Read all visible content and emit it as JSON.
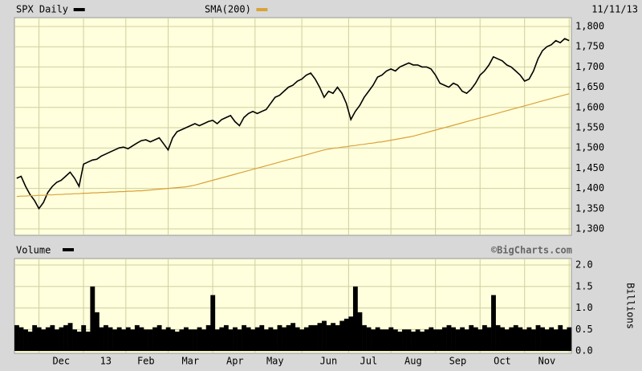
{
  "chart_data": [
    {
      "type": "line",
      "date": "11/11/13",
      "ylim": [
        1300,
        1800
      ],
      "yticks": [
        {
          "value": 1300,
          "label": "1,300"
        },
        {
          "value": 1350,
          "label": "1,350"
        },
        {
          "value": 1400,
          "label": "1,400"
        },
        {
          "value": 1450,
          "label": "1,450"
        },
        {
          "value": 1500,
          "label": "1,500"
        },
        {
          "value": 1550,
          "label": "1,550"
        },
        {
          "value": 1600,
          "label": "1,600"
        },
        {
          "value": 1650,
          "label": "1,650"
        },
        {
          "value": 1700,
          "label": "1,700"
        },
        {
          "value": 1750,
          "label": "1,750"
        },
        {
          "value": 1800,
          "label": "1,800"
        }
      ],
      "grid": true,
      "series": [
        {
          "name": "SPX Daily",
          "color": "#000000",
          "values": [
            1425,
            1430,
            1405,
            1385,
            1370,
            1350,
            1365,
            1390,
            1405,
            1415,
            1420,
            1430,
            1440,
            1425,
            1405,
            1460,
            1465,
            1470,
            1472,
            1480,
            1485,
            1490,
            1495,
            1500,
            1502,
            1498,
            1505,
            1512,
            1518,
            1520,
            1515,
            1520,
            1525,
            1510,
            1495,
            1525,
            1540,
            1545,
            1550,
            1555,
            1560,
            1555,
            1560,
            1565,
            1568,
            1560,
            1570,
            1575,
            1580,
            1565,
            1555,
            1575,
            1585,
            1590,
            1585,
            1590,
            1595,
            1610,
            1625,
            1630,
            1640,
            1650,
            1655,
            1665,
            1670,
            1680,
            1685,
            1670,
            1650,
            1625,
            1640,
            1635,
            1650,
            1635,
            1610,
            1570,
            1590,
            1605,
            1625,
            1640,
            1655,
            1675,
            1680,
            1690,
            1695,
            1690,
            1700,
            1705,
            1710,
            1705,
            1705,
            1700,
            1700,
            1695,
            1680,
            1660,
            1655,
            1650,
            1660,
            1655,
            1640,
            1635,
            1645,
            1660,
            1680,
            1690,
            1705,
            1725,
            1720,
            1715,
            1705,
            1700,
            1690,
            1680,
            1665,
            1670,
            1690,
            1720,
            1740,
            1750,
            1755,
            1765,
            1760,
            1770,
            1765
          ]
        },
        {
          "name": "SMA(200)",
          "color": "#d9a23a",
          "values": [
            1380,
            1381,
            1381,
            1382,
            1382,
            1383,
            1383,
            1384,
            1384,
            1385,
            1385,
            1386,
            1386,
            1387,
            1387,
            1388,
            1388,
            1389,
            1389,
            1390,
            1390,
            1391,
            1391,
            1392,
            1392,
            1393,
            1393,
            1394,
            1394,
            1395,
            1396,
            1397,
            1398,
            1399,
            1400,
            1401,
            1402,
            1403,
            1404,
            1406,
            1408,
            1411,
            1414,
            1417,
            1420,
            1423,
            1426,
            1429,
            1432,
            1435,
            1438,
            1441,
            1444,
            1447,
            1450,
            1453,
            1456,
            1459,
            1462,
            1465,
            1468,
            1471,
            1474,
            1477,
            1480,
            1483,
            1486,
            1489,
            1492,
            1495,
            1497,
            1499,
            1500,
            1502,
            1503,
            1505,
            1506,
            1508,
            1509,
            1511,
            1512,
            1514,
            1515,
            1517,
            1519,
            1521,
            1523,
            1525,
            1527,
            1529,
            1532,
            1535,
            1538,
            1541,
            1544,
            1547,
            1550,
            1553,
            1556,
            1559,
            1562,
            1565,
            1568,
            1571,
            1574,
            1577,
            1580,
            1583,
            1586,
            1589,
            1592,
            1595,
            1598,
            1601,
            1604,
            1607,
            1610,
            1613,
            1616,
            1619,
            1622,
            1625,
            1628,
            1631,
            1634
          ]
        }
      ]
    },
    {
      "type": "bar",
      "title": "Volume",
      "source": "©BigCharts.com",
      "y_label": "Billions",
      "color": "#000000",
      "ylim": [
        0,
        2
      ],
      "yticks": [
        {
          "value": 0,
          "label": "0.0"
        },
        0.5,
        {
          "value": 1,
          "label": "1.0"
        },
        1.5,
        {
          "value": 2,
          "label": "2.0"
        }
      ],
      "grid": true,
      "categories": [
        null,
        null,
        null,
        null,
        null,
        null,
        null,
        null,
        null,
        null,
        "Dec",
        null,
        null,
        null,
        null,
        null,
        null,
        null,
        null,
        null,
        "13",
        null,
        null,
        null,
        null,
        null,
        null,
        null,
        null,
        "Feb",
        null,
        null,
        null,
        null,
        null,
        null,
        null,
        null,
        null,
        "Mar",
        null,
        null,
        null,
        null,
        null,
        null,
        null,
        null,
        null,
        "Apr",
        null,
        null,
        null,
        null,
        null,
        null,
        null,
        null,
        "May",
        null,
        null,
        null,
        null,
        null,
        null,
        null,
        null,
        null,
        null,
        null,
        "Jun",
        null,
        null,
        null,
        null,
        null,
        null,
        null,
        null,
        "Jul",
        null,
        null,
        null,
        null,
        null,
        null,
        null,
        null,
        null,
        "Aug",
        null,
        null,
        null,
        null,
        null,
        null,
        null,
        null,
        null,
        "Sep",
        null,
        null,
        null,
        null,
        null,
        null,
        null,
        null,
        null,
        "Oct",
        null,
        null,
        null,
        null,
        null,
        null,
        null,
        null,
        null,
        "Nov",
        null,
        null,
        null,
        null,
        null
      ],
      "values": [
        0.6,
        0.55,
        0.5,
        0.45,
        0.6,
        0.55,
        0.5,
        0.55,
        0.6,
        0.5,
        0.55,
        0.6,
        0.65,
        0.5,
        0.45,
        0.6,
        0.45,
        1.5,
        0.9,
        0.55,
        0.6,
        0.55,
        0.5,
        0.55,
        0.5,
        0.55,
        0.5,
        0.6,
        0.55,
        0.5,
        0.5,
        0.55,
        0.6,
        0.5,
        0.55,
        0.5,
        0.45,
        0.5,
        0.55,
        0.5,
        0.5,
        0.55,
        0.5,
        0.6,
        1.3,
        0.5,
        0.55,
        0.6,
        0.5,
        0.55,
        0.5,
        0.6,
        0.55,
        0.5,
        0.55,
        0.6,
        0.5,
        0.55,
        0.5,
        0.6,
        0.55,
        0.6,
        0.65,
        0.55,
        0.5,
        0.55,
        0.6,
        0.6,
        0.65,
        0.7,
        0.6,
        0.65,
        0.6,
        0.7,
        0.75,
        0.8,
        1.5,
        0.9,
        0.6,
        0.55,
        0.5,
        0.55,
        0.5,
        0.5,
        0.55,
        0.5,
        0.45,
        0.5,
        0.5,
        0.45,
        0.5,
        0.45,
        0.5,
        0.55,
        0.5,
        0.5,
        0.55,
        0.6,
        0.55,
        0.5,
        0.55,
        0.5,
        0.6,
        0.55,
        0.5,
        0.6,
        0.55,
        1.3,
        0.6,
        0.55,
        0.5,
        0.55,
        0.6,
        0.55,
        0.5,
        0.55,
        0.5,
        0.6,
        0.55,
        0.5,
        0.55,
        0.5,
        0.6,
        0.5,
        0.55
      ]
    }
  ]
}
